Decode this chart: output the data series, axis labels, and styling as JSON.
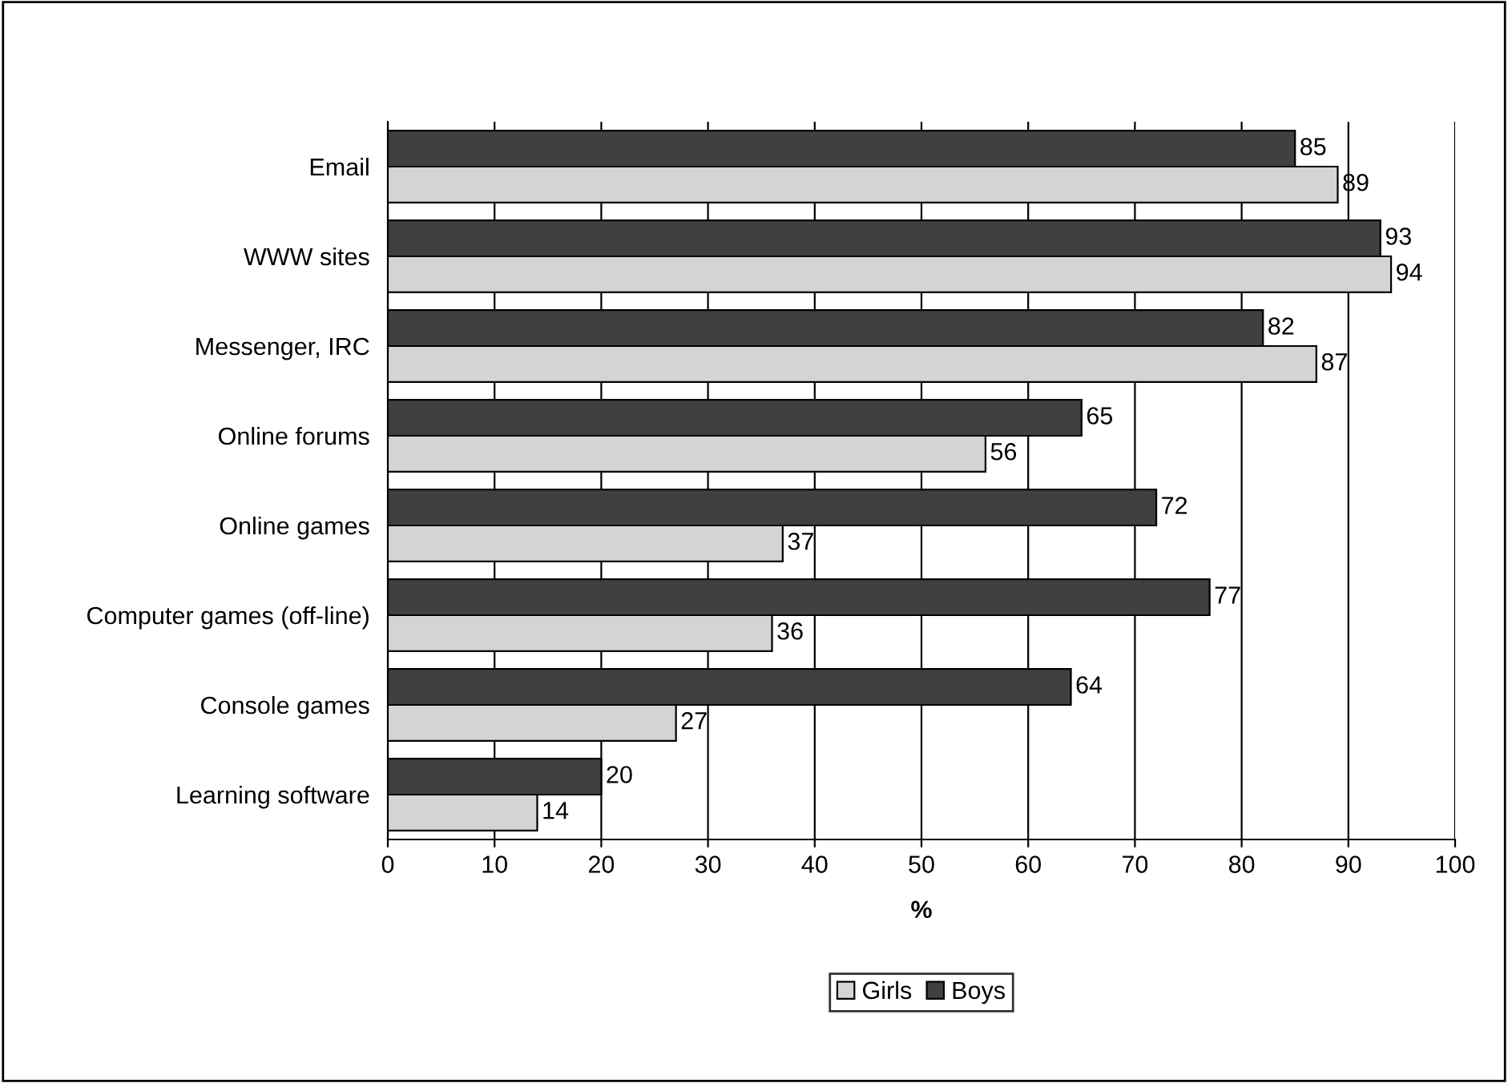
{
  "chart_data": {
    "type": "bar",
    "orientation": "horizontal",
    "xlabel": "%",
    "categories": [
      "Email",
      "WWW sites",
      "Messenger, IRC",
      "Online forums",
      "Online games",
      "Computer games (off-line)",
      "Console games",
      "Learning software"
    ],
    "series": [
      {
        "name": "Girls",
        "color": "#d4d4d4",
        "values": [
          89,
          94,
          87,
          56,
          37,
          36,
          27,
          14
        ]
      },
      {
        "name": "Boys",
        "color": "#404040",
        "values": [
          85,
          93,
          82,
          65,
          72,
          77,
          64,
          20
        ]
      }
    ],
    "xlim": [
      0,
      100
    ],
    "xticks": [
      0,
      10,
      20,
      30,
      40,
      50,
      60,
      70,
      80,
      90,
      100
    ],
    "grid": "x",
    "legend": "bottom",
    "data_labels": true
  }
}
